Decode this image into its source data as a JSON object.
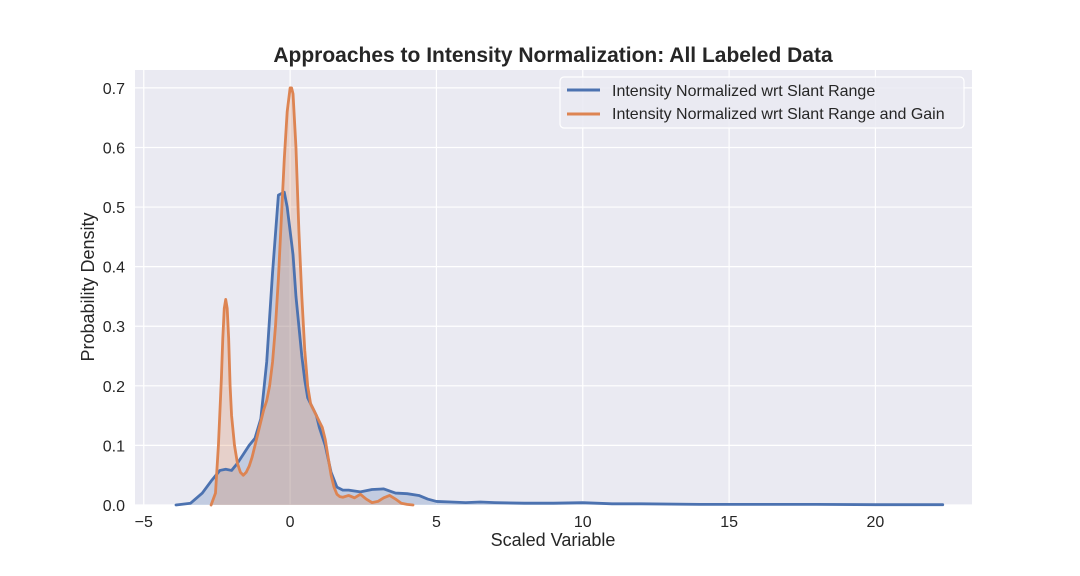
{
  "chart_data": {
    "type": "area",
    "title": "Approaches to Intensity Normalization: All Labeled Data",
    "xlabel": "Scaled Variable",
    "ylabel": "Probability Density",
    "xlim": [
      -5.3,
      23.3
    ],
    "ylim": [
      0,
      0.73
    ],
    "xticks": [
      -5,
      0,
      5,
      10,
      15,
      20
    ],
    "xtick_labels": [
      "−5",
      "0",
      "5",
      "10",
      "15",
      "20"
    ],
    "yticks": [
      0.0,
      0.1,
      0.2,
      0.3,
      0.4,
      0.5,
      0.6,
      0.7
    ],
    "ytick_labels": [
      "0.0",
      "0.1",
      "0.2",
      "0.3",
      "0.4",
      "0.5",
      "0.6",
      "0.7"
    ],
    "grid": true,
    "legend_position": "top-right",
    "series": [
      {
        "name": "Intensity Normalized wrt Slant Range",
        "color": "#4c72b0",
        "x": [
          -3.9,
          -3.4,
          -3.0,
          -2.7,
          -2.4,
          -2.2,
          -2.0,
          -1.8,
          -1.6,
          -1.4,
          -1.2,
          -1.0,
          -0.8,
          -0.6,
          -0.4,
          -0.2,
          -0.1,
          0.1,
          0.2,
          0.3,
          0.4,
          0.5,
          0.6,
          0.7,
          0.8,
          0.9,
          1.0,
          1.2,
          1.4,
          1.6,
          1.8,
          2.0,
          2.4,
          2.8,
          3.2,
          3.6,
          4.0,
          4.4,
          4.7,
          5.0,
          5.5,
          6.0,
          6.5,
          7.0,
          8.0,
          9.0,
          10.0,
          11.0,
          12.0,
          14.0,
          16.0,
          18.0,
          20.0,
          22.3
        ],
        "y": [
          0.0,
          0.003,
          0.02,
          0.04,
          0.058,
          0.06,
          0.058,
          0.07,
          0.085,
          0.1,
          0.112,
          0.145,
          0.24,
          0.39,
          0.52,
          0.525,
          0.5,
          0.42,
          0.35,
          0.3,
          0.25,
          0.21,
          0.18,
          0.17,
          0.16,
          0.15,
          0.13,
          0.1,
          0.055,
          0.03,
          0.025,
          0.025,
          0.022,
          0.026,
          0.027,
          0.02,
          0.019,
          0.016,
          0.01,
          0.006,
          0.005,
          0.004,
          0.005,
          0.004,
          0.003,
          0.003,
          0.004,
          0.002,
          0.002,
          0.001,
          0.001,
          0.001,
          0.0005,
          0.0005
        ]
      },
      {
        "name": "Intensity Normalized wrt Slant Range and Gain",
        "color": "#dd8452",
        "x": [
          -2.7,
          -2.55,
          -2.45,
          -2.35,
          -2.3,
          -2.25,
          -2.2,
          -2.15,
          -2.1,
          -2.05,
          -2.0,
          -1.9,
          -1.8,
          -1.7,
          -1.6,
          -1.5,
          -1.4,
          -1.3,
          -1.2,
          -1.1,
          -1.0,
          -0.9,
          -0.8,
          -0.7,
          -0.6,
          -0.5,
          -0.4,
          -0.3,
          -0.2,
          -0.1,
          0.0,
          0.05,
          0.1,
          0.2,
          0.3,
          0.4,
          0.5,
          0.6,
          0.7,
          0.8,
          0.9,
          1.0,
          1.1,
          1.2,
          1.3,
          1.4,
          1.5,
          1.6,
          1.7,
          1.8,
          2.0,
          2.2,
          2.4,
          2.6,
          2.8,
          3.0,
          3.2,
          3.4,
          3.6,
          3.8,
          4.0,
          4.2
        ],
        "y": [
          0.0,
          0.02,
          0.1,
          0.21,
          0.28,
          0.33,
          0.345,
          0.33,
          0.28,
          0.2,
          0.15,
          0.1,
          0.07,
          0.055,
          0.05,
          0.055,
          0.065,
          0.08,
          0.1,
          0.12,
          0.14,
          0.16,
          0.175,
          0.2,
          0.24,
          0.3,
          0.38,
          0.48,
          0.58,
          0.66,
          0.7,
          0.7,
          0.69,
          0.6,
          0.46,
          0.35,
          0.26,
          0.2,
          0.17,
          0.16,
          0.15,
          0.14,
          0.13,
          0.11,
          0.08,
          0.05,
          0.03,
          0.018,
          0.014,
          0.013,
          0.016,
          0.012,
          0.018,
          0.01,
          0.004,
          0.006,
          0.012,
          0.016,
          0.01,
          0.003,
          0.001,
          0.0
        ]
      }
    ]
  }
}
